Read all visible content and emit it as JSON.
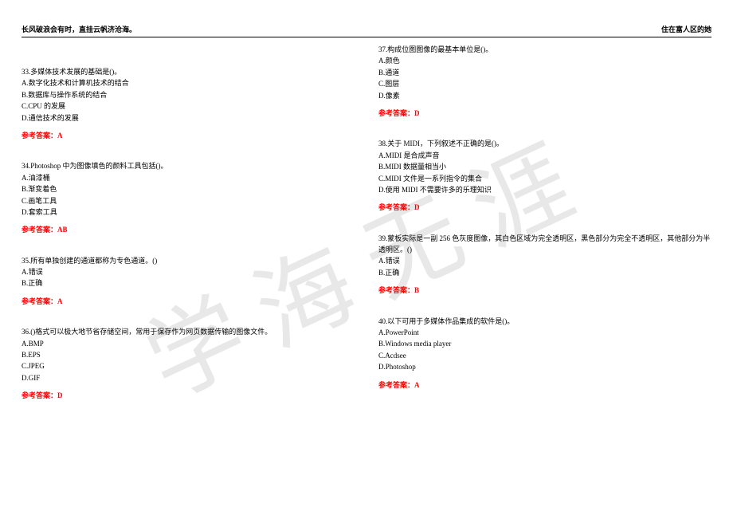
{
  "header": {
    "left": "长风破浪会有时，直挂云帆济沧海。",
    "right": "住在富人区的她"
  },
  "watermark": "学海无涯",
  "answer_prefix": "参考答案：",
  "left_column": [
    {
      "num": "33",
      "stem": "多媒体技术发展的基础是()。",
      "options": [
        "A.数字化技术和计算机技术的结合",
        "B.数据库与操作系统的结合",
        "C.CPU 的发展",
        "D.通信技术的发展"
      ],
      "answer": "A"
    },
    {
      "num": "34",
      "stem": "Photoshop 中为图像填色的颜料工具包括()。",
      "options": [
        "A.油漆桶",
        "B.渐变着色",
        "C.画笔工具",
        "D.套索工具"
      ],
      "answer": "AB"
    },
    {
      "num": "35",
      "stem": "所有单独创建的通道都称为专色通道。()",
      "options": [
        "A.错误",
        "B.正确"
      ],
      "answer": "A"
    },
    {
      "num": "36",
      "stem": "()格式可以极大地节省存储空间，常用于保存作为网页数据传输的图像文件。",
      "options": [
        "A.BMP",
        "B.EPS",
        "C.JPEG",
        "D.GIF"
      ],
      "answer": "D"
    }
  ],
  "right_column": [
    {
      "num": "37",
      "stem": "构成位图图像的最基本单位是()。",
      "options": [
        "A.颜色",
        "B.通道",
        "C.图层",
        "D.像素"
      ],
      "answer": "D"
    },
    {
      "num": "38",
      "stem": "关于 MIDI，下列叙述不正确的是()。",
      "options": [
        "A.MIDI 是合成声音",
        "B.MIDI 数据量相当小",
        "C.MIDI 文件是一系列指令的集合",
        "D.使用 MIDI 不需要许多的乐理知识"
      ],
      "answer": "D"
    },
    {
      "num": "39",
      "stem": "蒙板实际是一副 256 色灰度图像，其白色区域为完全透明区，黑色部分为完全不透明区，其他部分为半透明区。()",
      "options": [
        "A.错误",
        "B.正确"
      ],
      "answer": "B"
    },
    {
      "num": "40",
      "stem": "以下可用于多媒体作品集成的软件是()。",
      "options": [
        "A.PowerPoint",
        "B.Windows media player",
        "C.Acdsee",
        "D.Photoshop"
      ],
      "answer": "A"
    }
  ]
}
